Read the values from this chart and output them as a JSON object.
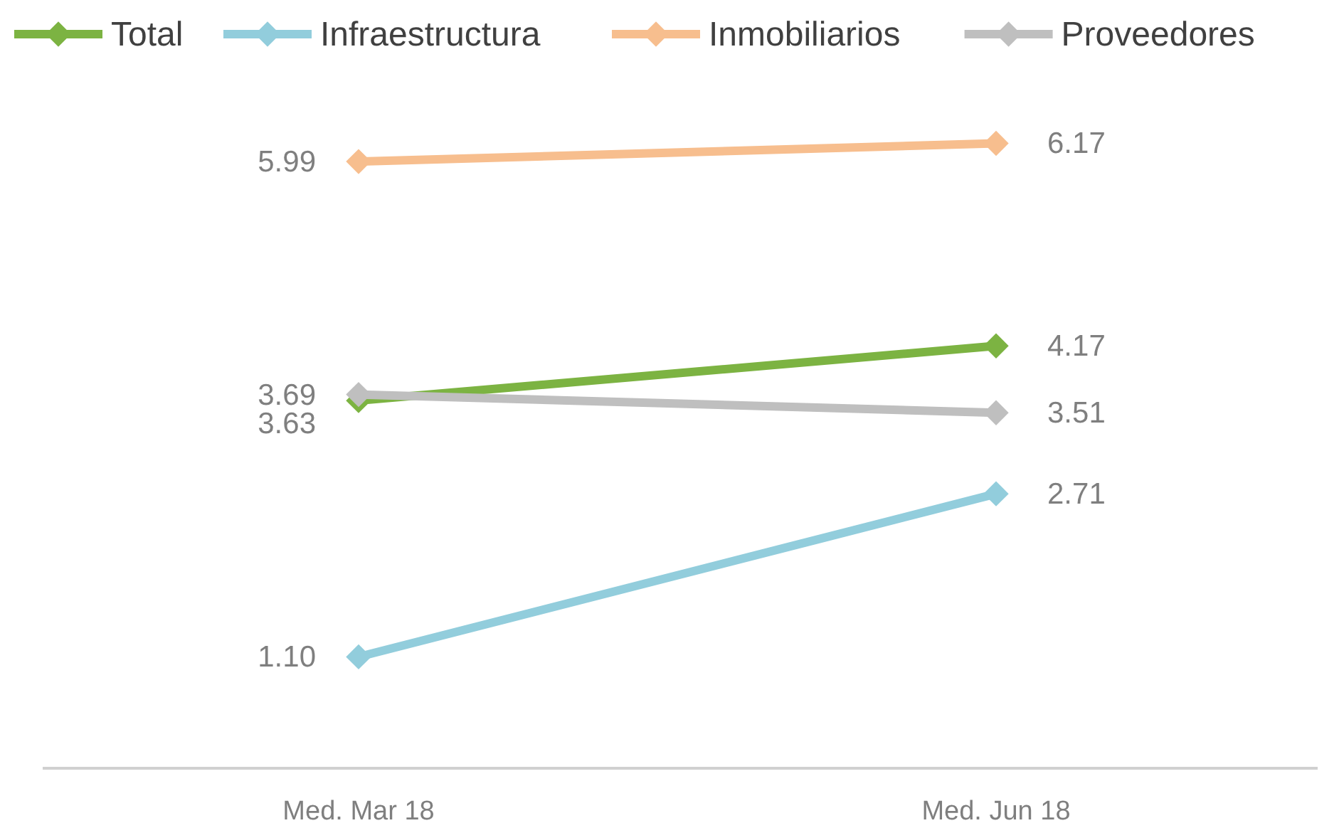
{
  "chart_data": {
    "type": "line",
    "categories": [
      "Med. Mar 18",
      "Med. Jun 18"
    ],
    "series": [
      {
        "name": "Total",
        "color": "#7cb342",
        "values": [
          3.63,
          4.17
        ],
        "value_labels": [
          "3.63",
          "4.17"
        ]
      },
      {
        "name": "Infraestructura",
        "color": "#92cddc",
        "values": [
          1.1,
          2.71
        ],
        "value_labels": [
          "1.10",
          "2.71"
        ]
      },
      {
        "name": "Inmobiliarios",
        "color": "#f7be8e",
        "values": [
          5.99,
          6.17
        ],
        "value_labels": [
          "5.99",
          "6.17"
        ]
      },
      {
        "name": "Proveedores",
        "color": "#bfbfbf",
        "values": [
          3.69,
          3.51
        ],
        "value_labels": [
          "3.69",
          "3.51"
        ]
      }
    ],
    "legend": "top",
    "marker": "diamond",
    "line_style": "solid",
    "grid": false
  }
}
